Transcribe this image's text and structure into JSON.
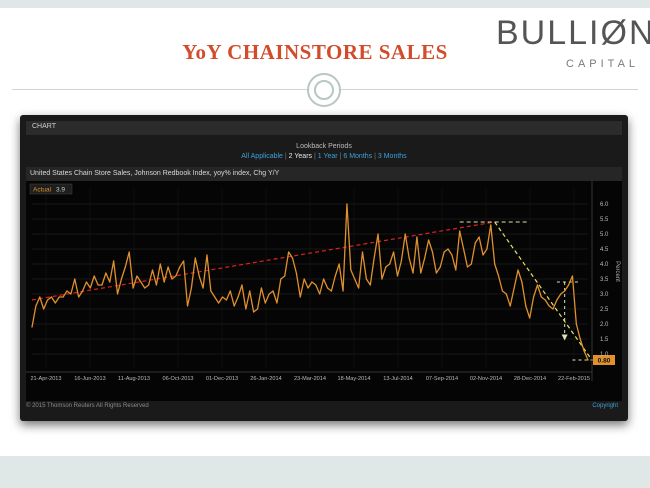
{
  "slide": {
    "title": "YoY CHAINSTORE SALES",
    "logo_main": "BULLIØN",
    "logo_sub": "CAPITAL"
  },
  "panel": {
    "label": "CHART",
    "lookback_title": "Lookback Periods",
    "lookback_options": [
      "All Applicable",
      "2 Years",
      "1 Year",
      "6 Months",
      "3 Months"
    ],
    "lookback_selected": "2 Years",
    "series_title": "United States Chain Store Sales, Johnson Redbook Index, yoy% index, Chg Y/Y",
    "footer_left": "© 2015 Thomson Reuters All Rights Reserved",
    "footer_right": "Copyright"
  },
  "colors": {
    "series": "#e0902c",
    "trend": "#e02020",
    "annotation": "#e8e060",
    "grid": "#2a2a2a"
  },
  "chart_data": {
    "type": "line",
    "title": "",
    "xlabel": "",
    "ylabel": "Percent",
    "ylim": [
      0.5,
      6.5
    ],
    "yticks": [
      1.0,
      1.5,
      2.0,
      2.5,
      3.0,
      3.5,
      4.0,
      4.5,
      5.0,
      5.5,
      6.0
    ],
    "ytick_labels": [
      "1.0",
      "1.5",
      "2.0",
      "2.5",
      "3.0",
      "3.5",
      "4.0",
      "4.5",
      "5.0",
      "5.5",
      "6.0"
    ],
    "x_tick_labels": [
      "21-Apr-2013",
      "16-Jun-2013",
      "11-Aug-2013",
      "06-Oct-2013",
      "01-Dec-2013",
      "26-Jan-2014",
      "23-Mar-2014",
      "18-May-2014",
      "13-Jul-2014",
      "07-Sep-2014",
      "02-Nov-2014",
      "28-Dec-2014",
      "22-Feb-2015"
    ],
    "legend": {
      "label": "Actual",
      "value": "3.9",
      "position": "top-left"
    },
    "last_value_label": "0.80",
    "grid": true,
    "series": [
      {
        "name": "Actual",
        "values": [
          1.9,
          2.6,
          2.9,
          2.5,
          2.8,
          2.9,
          2.7,
          2.9,
          2.9,
          3.1,
          3.0,
          3.5,
          2.9,
          3.1,
          3.4,
          3.2,
          3.6,
          3.3,
          3.3,
          3.7,
          3.4,
          4.1,
          3.0,
          3.5,
          3.9,
          4.4,
          3.2,
          3.6,
          3.4,
          3.2,
          3.3,
          3.8,
          3.3,
          4.0,
          3.4,
          3.9,
          3.5,
          3.6,
          3.9,
          4.1,
          2.6,
          3.2,
          4.2,
          3.6,
          3.2,
          4.3,
          3.1,
          2.9,
          2.7,
          2.9,
          2.8,
          3.1,
          2.6,
          2.9,
          3.3,
          2.5,
          3.1,
          2.4,
          2.5,
          3.2,
          2.7,
          3.0,
          3.1,
          2.7,
          3.5,
          3.6,
          4.4,
          4.2,
          3.7,
          2.9,
          3.5,
          3.2,
          3.4,
          3.3,
          3.0,
          3.5,
          3.2,
          3.1,
          3.6,
          4.0,
          3.1,
          6.0,
          3.8,
          3.5,
          3.2,
          4.4,
          3.5,
          3.3,
          4.2,
          5.0,
          3.5,
          3.9,
          4.0,
          4.4,
          3.6,
          4.1,
          5.0,
          4.2,
          3.7,
          4.9,
          3.7,
          4.2,
          4.8,
          4.4,
          3.7,
          3.9,
          4.4,
          4.5,
          4.3,
          3.8,
          5.1,
          4.5,
          3.9,
          4.0,
          4.7,
          4.9,
          4.3,
          4.5,
          5.3,
          4.0,
          3.6,
          3.1,
          3.0,
          2.6,
          3.2,
          3.8,
          3.4,
          2.6,
          2.2,
          2.9,
          3.3,
          2.9,
          2.8,
          2.6,
          2.5,
          2.8,
          3.0,
          3.1,
          3.3,
          3.6,
          2.0,
          1.5,
          1.1,
          0.8
        ]
      }
    ],
    "annotations": {
      "trend_up": {
        "from_index": 0,
        "to_index": 119,
        "from_value": 2.8,
        "to_value": 5.4
      },
      "trend_down": {
        "from_index": 119,
        "to_index": 144,
        "from_value": 5.4,
        "to_value": 0.8
      },
      "peak_level": 5.4,
      "recent_level": 3.4,
      "final_level": 0.8
    }
  }
}
